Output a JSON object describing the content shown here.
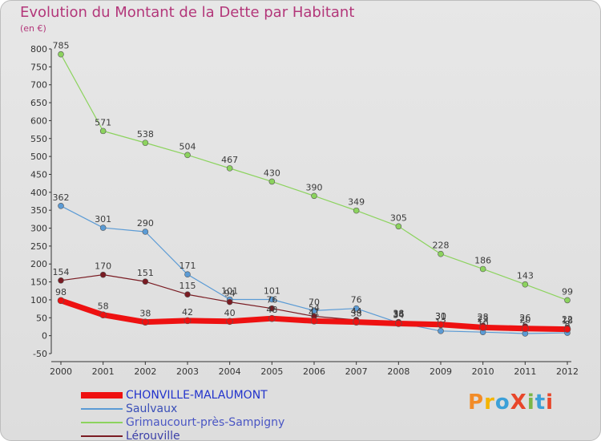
{
  "title": "Evolution du Montant de la Dette par Habitant",
  "unit": "(en €)",
  "logo": {
    "text": "ProXiti",
    "colors": [
      "#f28c28",
      "#f4b400",
      "#3ca0d8",
      "#e8462a",
      "#7ab648",
      "#3ca0d8",
      "#e8462a"
    ]
  },
  "chart_data": {
    "type": "line",
    "title": "Evolution du Montant de la Dette par Habitant",
    "ylabel": "(en €)",
    "xlabel": "",
    "ylim": [
      -50,
      800
    ],
    "yticks": [
      -50,
      0,
      50,
      100,
      150,
      200,
      250,
      300,
      350,
      400,
      450,
      500,
      550,
      600,
      650,
      700,
      750,
      800
    ],
    "x": [
      "2000",
      "2001",
      "2002",
      "2003",
      "2004",
      "2005",
      "2006",
      "2007",
      "2008",
      "2009",
      "2010",
      "2011",
      "2012"
    ],
    "grid": false,
    "legend": "bottom-left",
    "series": [
      {
        "name": "Grimaucourt-près-Sampigny",
        "color": "#8cd35e",
        "width": 1.2,
        "values": [
          785,
          571,
          538,
          504,
          467,
          430,
          390,
          349,
          305,
          228,
          186,
          143,
          99
        ]
      },
      {
        "name": "Saulvaux",
        "color": "#5b9bd5",
        "width": 1.2,
        "values": [
          362,
          301,
          290,
          171,
          101,
          101,
          70,
          76,
          36,
          13,
          10,
          6,
          8
        ]
      },
      {
        "name": "Lérouville",
        "color": "#7a1c23",
        "width": 1.2,
        "values": [
          154,
          170,
          151,
          115,
          94,
          76,
          54,
          44,
          38,
          30,
          28,
          26,
          22
        ]
      },
      {
        "name": "CHONVILLE-MALAUMONT",
        "color": "#ee1111",
        "width": 7,
        "values": [
          98,
          58,
          38,
          42,
          40,
          48,
          41,
          38,
          34,
          31,
          23,
          20,
          18
        ]
      }
    ],
    "legend_order": [
      "CHONVILLE-MALAUMONT",
      "Saulvaux",
      "Grimaucourt-près-Sampigny",
      "Lérouville"
    ]
  }
}
